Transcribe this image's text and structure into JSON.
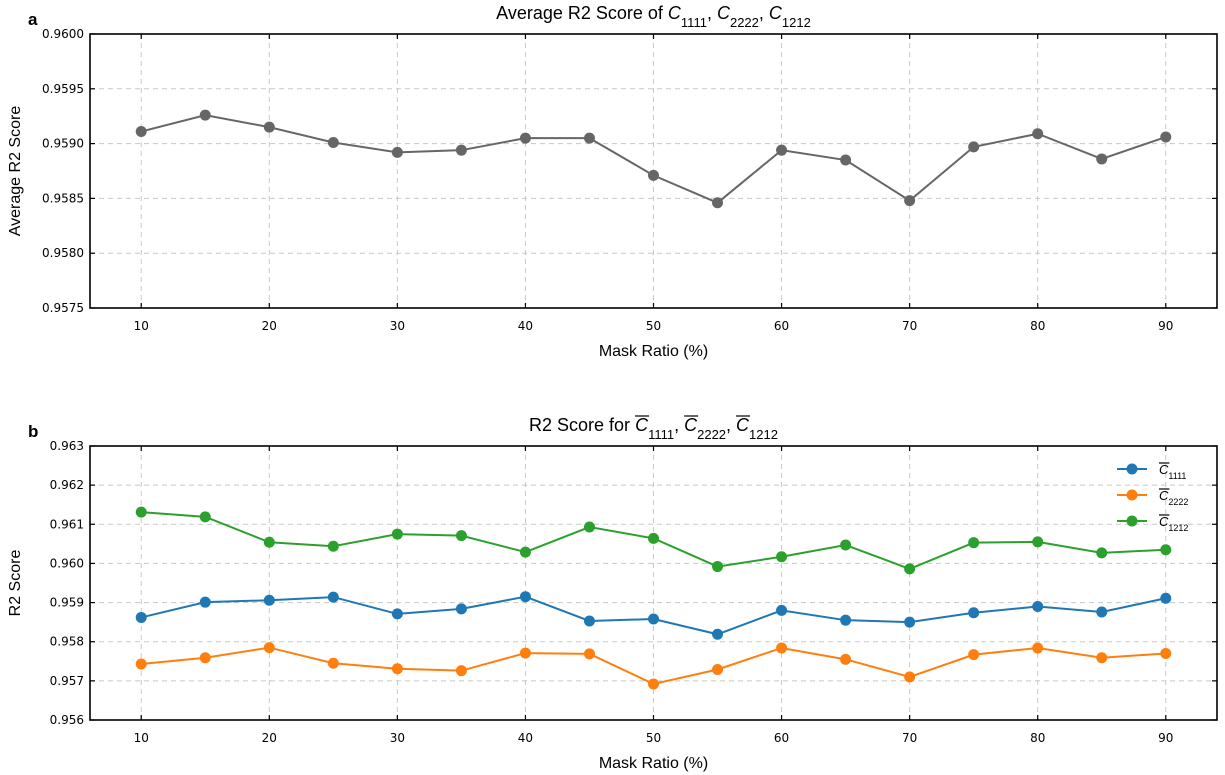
{
  "chart_data": [
    {
      "panel": "a",
      "type": "line",
      "title_parts": [
        {
          "t": "Average R2 Score of "
        },
        {
          "t": "C",
          "i": true
        },
        {
          "t": "1111",
          "sub": true
        },
        {
          "t": ", "
        },
        {
          "t": "C",
          "i": true
        },
        {
          "t": "2222",
          "sub": true
        },
        {
          "t": ", "
        },
        {
          "t": "C",
          "i": true
        },
        {
          "t": "1212",
          "sub": true
        }
      ],
      "xlabel": "Mask Ratio (%)",
      "ylabel": "Average R2 Score",
      "xlim": [
        6,
        94
      ],
      "ylim": [
        0.9575,
        0.96
      ],
      "xticks": [
        10,
        20,
        30,
        40,
        50,
        60,
        70,
        80,
        90
      ],
      "yticks": [
        0.9575,
        0.958,
        0.9585,
        0.959,
        0.9595,
        0.96
      ],
      "ytick_decimals": 4,
      "grid": true,
      "x": [
        10,
        15,
        20,
        25,
        30,
        35,
        40,
        45,
        50,
        55,
        60,
        65,
        70,
        75,
        80,
        85,
        90
      ],
      "series": [
        {
          "color": "#666666",
          "values": [
            0.95911,
            0.95926,
            0.95915,
            0.95901,
            0.95892,
            0.95894,
            0.95905,
            0.95905,
            0.95871,
            0.95846,
            0.95894,
            0.95885,
            0.95848,
            0.95897,
            0.95909,
            0.95886,
            0.95906
          ]
        }
      ]
    },
    {
      "panel": "b",
      "type": "line",
      "title_parts": [
        {
          "t": "R2 Score for "
        },
        {
          "t": "C",
          "i": true,
          "bar": true
        },
        {
          "t": "1111",
          "sub": true
        },
        {
          "t": ", "
        },
        {
          "t": "C",
          "i": true,
          "bar": true
        },
        {
          "t": "2222",
          "sub": true
        },
        {
          "t": ", "
        },
        {
          "t": "C",
          "i": true,
          "bar": true
        },
        {
          "t": "1212",
          "sub": true
        }
      ],
      "xlabel": "Mask Ratio (%)",
      "ylabel": "R2 Score",
      "xlim": [
        6,
        94
      ],
      "ylim": [
        0.956,
        0.963
      ],
      "xticks": [
        10,
        20,
        30,
        40,
        50,
        60,
        70,
        80,
        90
      ],
      "yticks": [
        0.956,
        0.957,
        0.958,
        0.959,
        0.96,
        0.961,
        0.962,
        0.963
      ],
      "ytick_decimals": 3,
      "grid": true,
      "legend": "top-right",
      "x": [
        10,
        15,
        20,
        25,
        30,
        35,
        40,
        45,
        50,
        55,
        60,
        65,
        70,
        75,
        80,
        85,
        90
      ],
      "series": [
        {
          "name_parts": [
            {
              "t": "C",
              "i": true,
              "bar": true
            },
            {
              "t": "1111",
              "sub": true
            }
          ],
          "color": "#1f77b4",
          "values": [
            0.95862,
            0.95901,
            0.95906,
            0.95914,
            0.95871,
            0.95884,
            0.95915,
            0.95853,
            0.95858,
            0.95819,
            0.9588,
            0.95855,
            0.9585,
            0.95874,
            0.9589,
            0.95876,
            0.95911
          ]
        },
        {
          "name_parts": [
            {
              "t": "C",
              "i": true,
              "bar": true
            },
            {
              "t": "2222",
              "sub": true
            }
          ],
          "color": "#ff7f0e",
          "values": [
            0.95743,
            0.95759,
            0.95785,
            0.95745,
            0.95731,
            0.95726,
            0.95771,
            0.95769,
            0.95692,
            0.95729,
            0.95784,
            0.95755,
            0.9571,
            0.95767,
            0.95784,
            0.95759,
            0.9577
          ]
        },
        {
          "name_parts": [
            {
              "t": "C",
              "i": true,
              "bar": true
            },
            {
              "t": "1212",
              "sub": true
            }
          ],
          "color": "#2ca02c",
          "values": [
            0.96131,
            0.96119,
            0.96054,
            0.96044,
            0.96075,
            0.96071,
            0.96029,
            0.96093,
            0.96064,
            0.95992,
            0.96017,
            0.96047,
            0.95986,
            0.96053,
            0.96055,
            0.96027,
            0.96035
          ]
        }
      ]
    }
  ]
}
